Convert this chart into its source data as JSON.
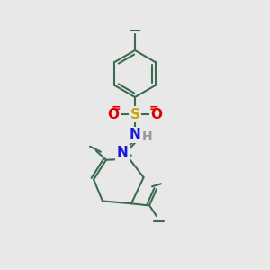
{
  "bg_color": "#e8e8e8",
  "bond_color": "#3d6b50",
  "bond_width": 1.5,
  "atom_colors": {
    "S": "#c8a800",
    "O": "#dd0000",
    "N": "#1a1add",
    "H": "#999999",
    "C": "#3d6b50"
  },
  "font_size": 9.5,
  "fig_size": [
    3.0,
    3.0
  ],
  "dpi": 100
}
